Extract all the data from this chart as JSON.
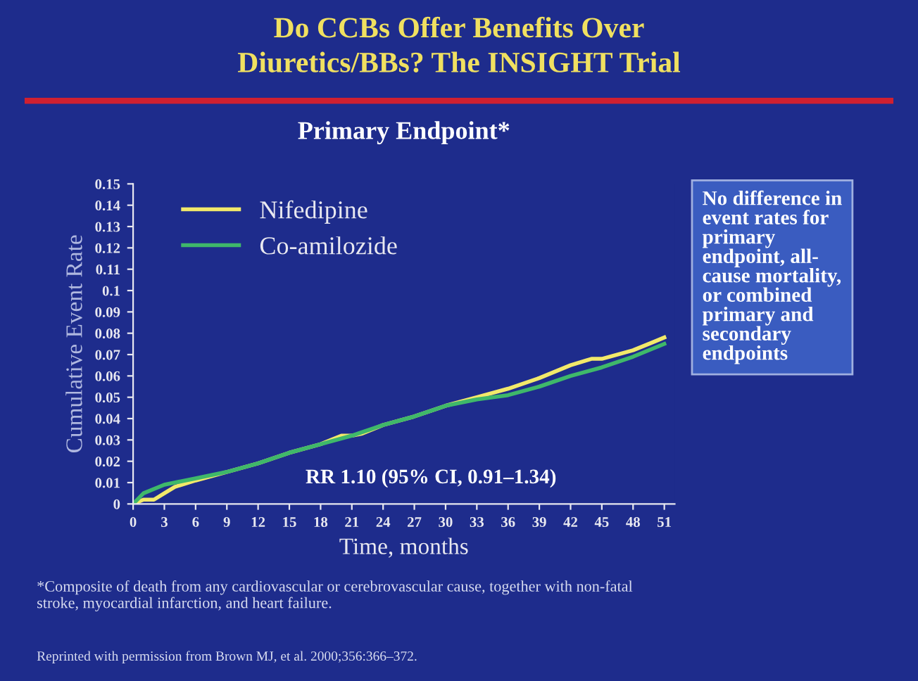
{
  "chart_data": {
    "type": "line",
    "title": "Do CCBs Offer Benefits Over\nDiuretics/BBs? The INSIGHT Trial",
    "subtitle": "Primary Endpoint*",
    "xlabel": "Time, months",
    "ylabel": "Cumulative Event Rate",
    "xlim": [
      0,
      52
    ],
    "ylim": [
      0,
      0.15
    ],
    "xticks": [
      0,
      3,
      6,
      9,
      12,
      15,
      18,
      21,
      24,
      27,
      30,
      33,
      36,
      39,
      42,
      45,
      48,
      51
    ],
    "yticks": [
      {
        "value": 0,
        "label": "0"
      },
      0.01,
      0.02,
      0.03,
      0.04,
      0.05,
      0.06,
      0.07,
      0.08,
      0.09,
      0.1,
      0.11,
      0.12,
      0.13,
      0.14,
      0.15
    ],
    "series": [
      {
        "name": "Nifedipine",
        "color": "#f2e96a",
        "x": [
          0,
          1,
          2,
          3,
          4,
          6,
          9,
          12,
          15,
          18,
          20,
          21,
          22,
          24,
          27,
          30,
          33,
          36,
          39,
          42,
          44,
          45,
          48,
          50,
          51
        ],
        "values": [
          0,
          0.002,
          0.002,
          0.005,
          0.008,
          0.011,
          0.015,
          0.019,
          0.024,
          0.028,
          0.032,
          0.032,
          0.033,
          0.037,
          0.041,
          0.046,
          0.05,
          0.054,
          0.059,
          0.065,
          0.068,
          0.068,
          0.072,
          0.076,
          0.078
        ]
      },
      {
        "name": "Co-amilozide",
        "color": "#3fb86a",
        "x": [
          0,
          1,
          3,
          6,
          9,
          12,
          15,
          18,
          21,
          24,
          27,
          30,
          33,
          36,
          39,
          42,
          45,
          48,
          51
        ],
        "values": [
          0,
          0.005,
          0.009,
          0.012,
          0.015,
          0.019,
          0.024,
          0.028,
          0.032,
          0.037,
          0.041,
          0.046,
          0.049,
          0.051,
          0.055,
          0.06,
          0.064,
          0.069,
          0.075
        ]
      }
    ],
    "legend": "top left",
    "grid": false,
    "annotations": [
      "RR 1.10 (95% CI, 0.91–1.34)",
      "No difference in\nevent rates for\nprimary\nendpoint, all-\ncause mortality,\nor combined\nprimary and\nsecondary\nendpoints",
      "*Composite of death from any cardiovascular or cerebrovascular cause, together with non-fatal\nstroke, myocardial infarction, and heart failure.",
      "Reprinted with permission from Brown MJ, et al. 2000;356:366–372."
    ]
  }
}
